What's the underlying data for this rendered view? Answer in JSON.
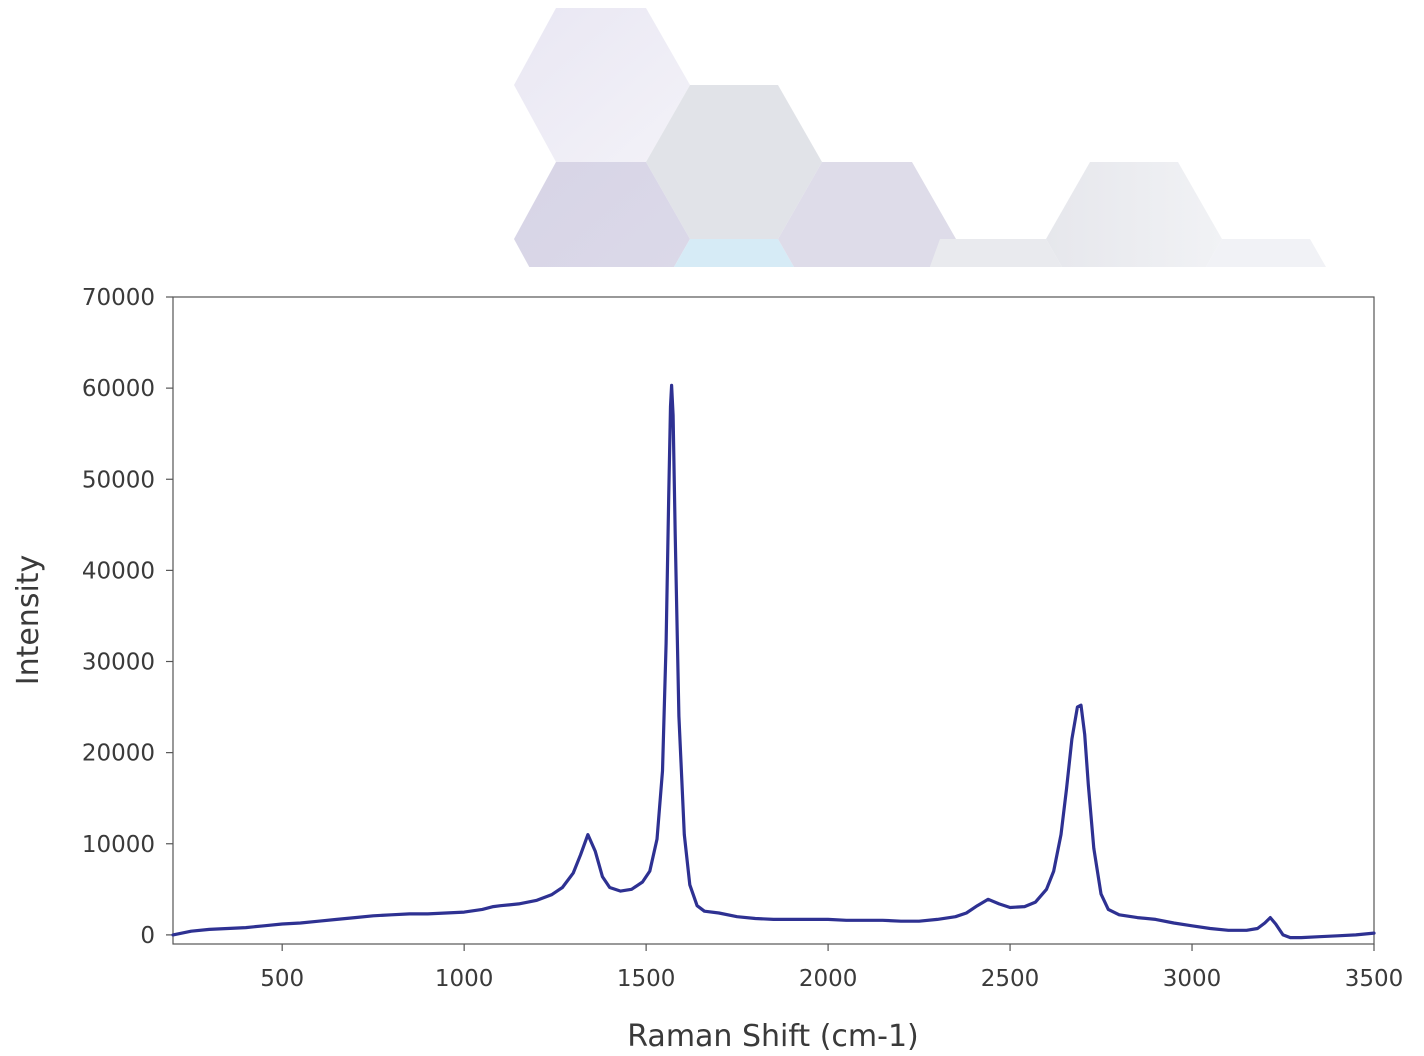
{
  "chart_data": {
    "type": "line",
    "title": "",
    "xlabel": "Raman Shift (cm-1)",
    "ylabel": "Intensity",
    "xlim": [
      200,
      3500
    ],
    "ylim": [
      -1000,
      70000
    ],
    "x_ticks": [
      500,
      1000,
      1500,
      2000,
      2500,
      3000,
      3500
    ],
    "y_ticks": [
      0,
      10000,
      20000,
      30000,
      40000,
      50000,
      60000,
      70000
    ],
    "x_tick_labels": [
      "500",
      "1000",
      "1500",
      "2000",
      "2500",
      "3000",
      "3500"
    ],
    "y_tick_labels": [
      "0",
      "10000",
      "20000",
      "30000",
      "40000",
      "50000",
      "60000",
      "70000"
    ],
    "grid": false,
    "legend": "none",
    "line_color": "#2e3192",
    "series": [
      {
        "x": [
          200,
          250,
          300,
          350,
          400,
          450,
          500,
          550,
          600,
          650,
          700,
          750,
          800,
          850,
          900,
          950,
          1000,
          1050,
          1080,
          1100,
          1150,
          1200,
          1240,
          1270,
          1300,
          1320,
          1340,
          1360,
          1380,
          1400,
          1430,
          1460,
          1490,
          1510,
          1530,
          1545,
          1555,
          1562,
          1567,
          1570,
          1574,
          1580,
          1590,
          1605,
          1620,
          1640,
          1660,
          1700,
          1750,
          1800,
          1850,
          1900,
          1950,
          2000,
          2050,
          2100,
          2150,
          2200,
          2250,
          2300,
          2350,
          2380,
          2410,
          2440,
          2470,
          2500,
          2540,
          2570,
          2600,
          2620,
          2640,
          2655,
          2670,
          2685,
          2695,
          2705,
          2715,
          2730,
          2750,
          2770,
          2800,
          2850,
          2900,
          2950,
          3000,
          3050,
          3100,
          3150,
          3180,
          3200,
          3215,
          3230,
          3250,
          3270,
          3300,
          3350,
          3400,
          3450,
          3500
        ],
        "y": [
          0,
          400,
          600,
          700,
          800,
          1000,
          1200,
          1300,
          1500,
          1700,
          1900,
          2100,
          2200,
          2300,
          2300,
          2400,
          2500,
          2800,
          3100,
          3200,
          3400,
          3800,
          4400,
          5200,
          6800,
          8800,
          11000,
          9200,
          6400,
          5200,
          4800,
          5000,
          5800,
          7000,
          10500,
          18000,
          32000,
          48000,
          58000,
          60300,
          57000,
          44000,
          24000,
          11000,
          5500,
          3200,
          2600,
          2400,
          2000,
          1800,
          1700,
          1700,
          1700,
          1700,
          1600,
          1600,
          1600,
          1500,
          1500,
          1700,
          2000,
          2400,
          3200,
          3900,
          3400,
          3000,
          3100,
          3600,
          5000,
          7000,
          11000,
          16000,
          21500,
          25000,
          25200,
          22000,
          16500,
          9500,
          4500,
          2800,
          2200,
          1900,
          1700,
          1300,
          1000,
          700,
          500,
          500,
          700,
          1300,
          1900,
          1200,
          0,
          -300,
          -300,
          -200,
          -100,
          0,
          200
        ]
      }
    ]
  }
}
